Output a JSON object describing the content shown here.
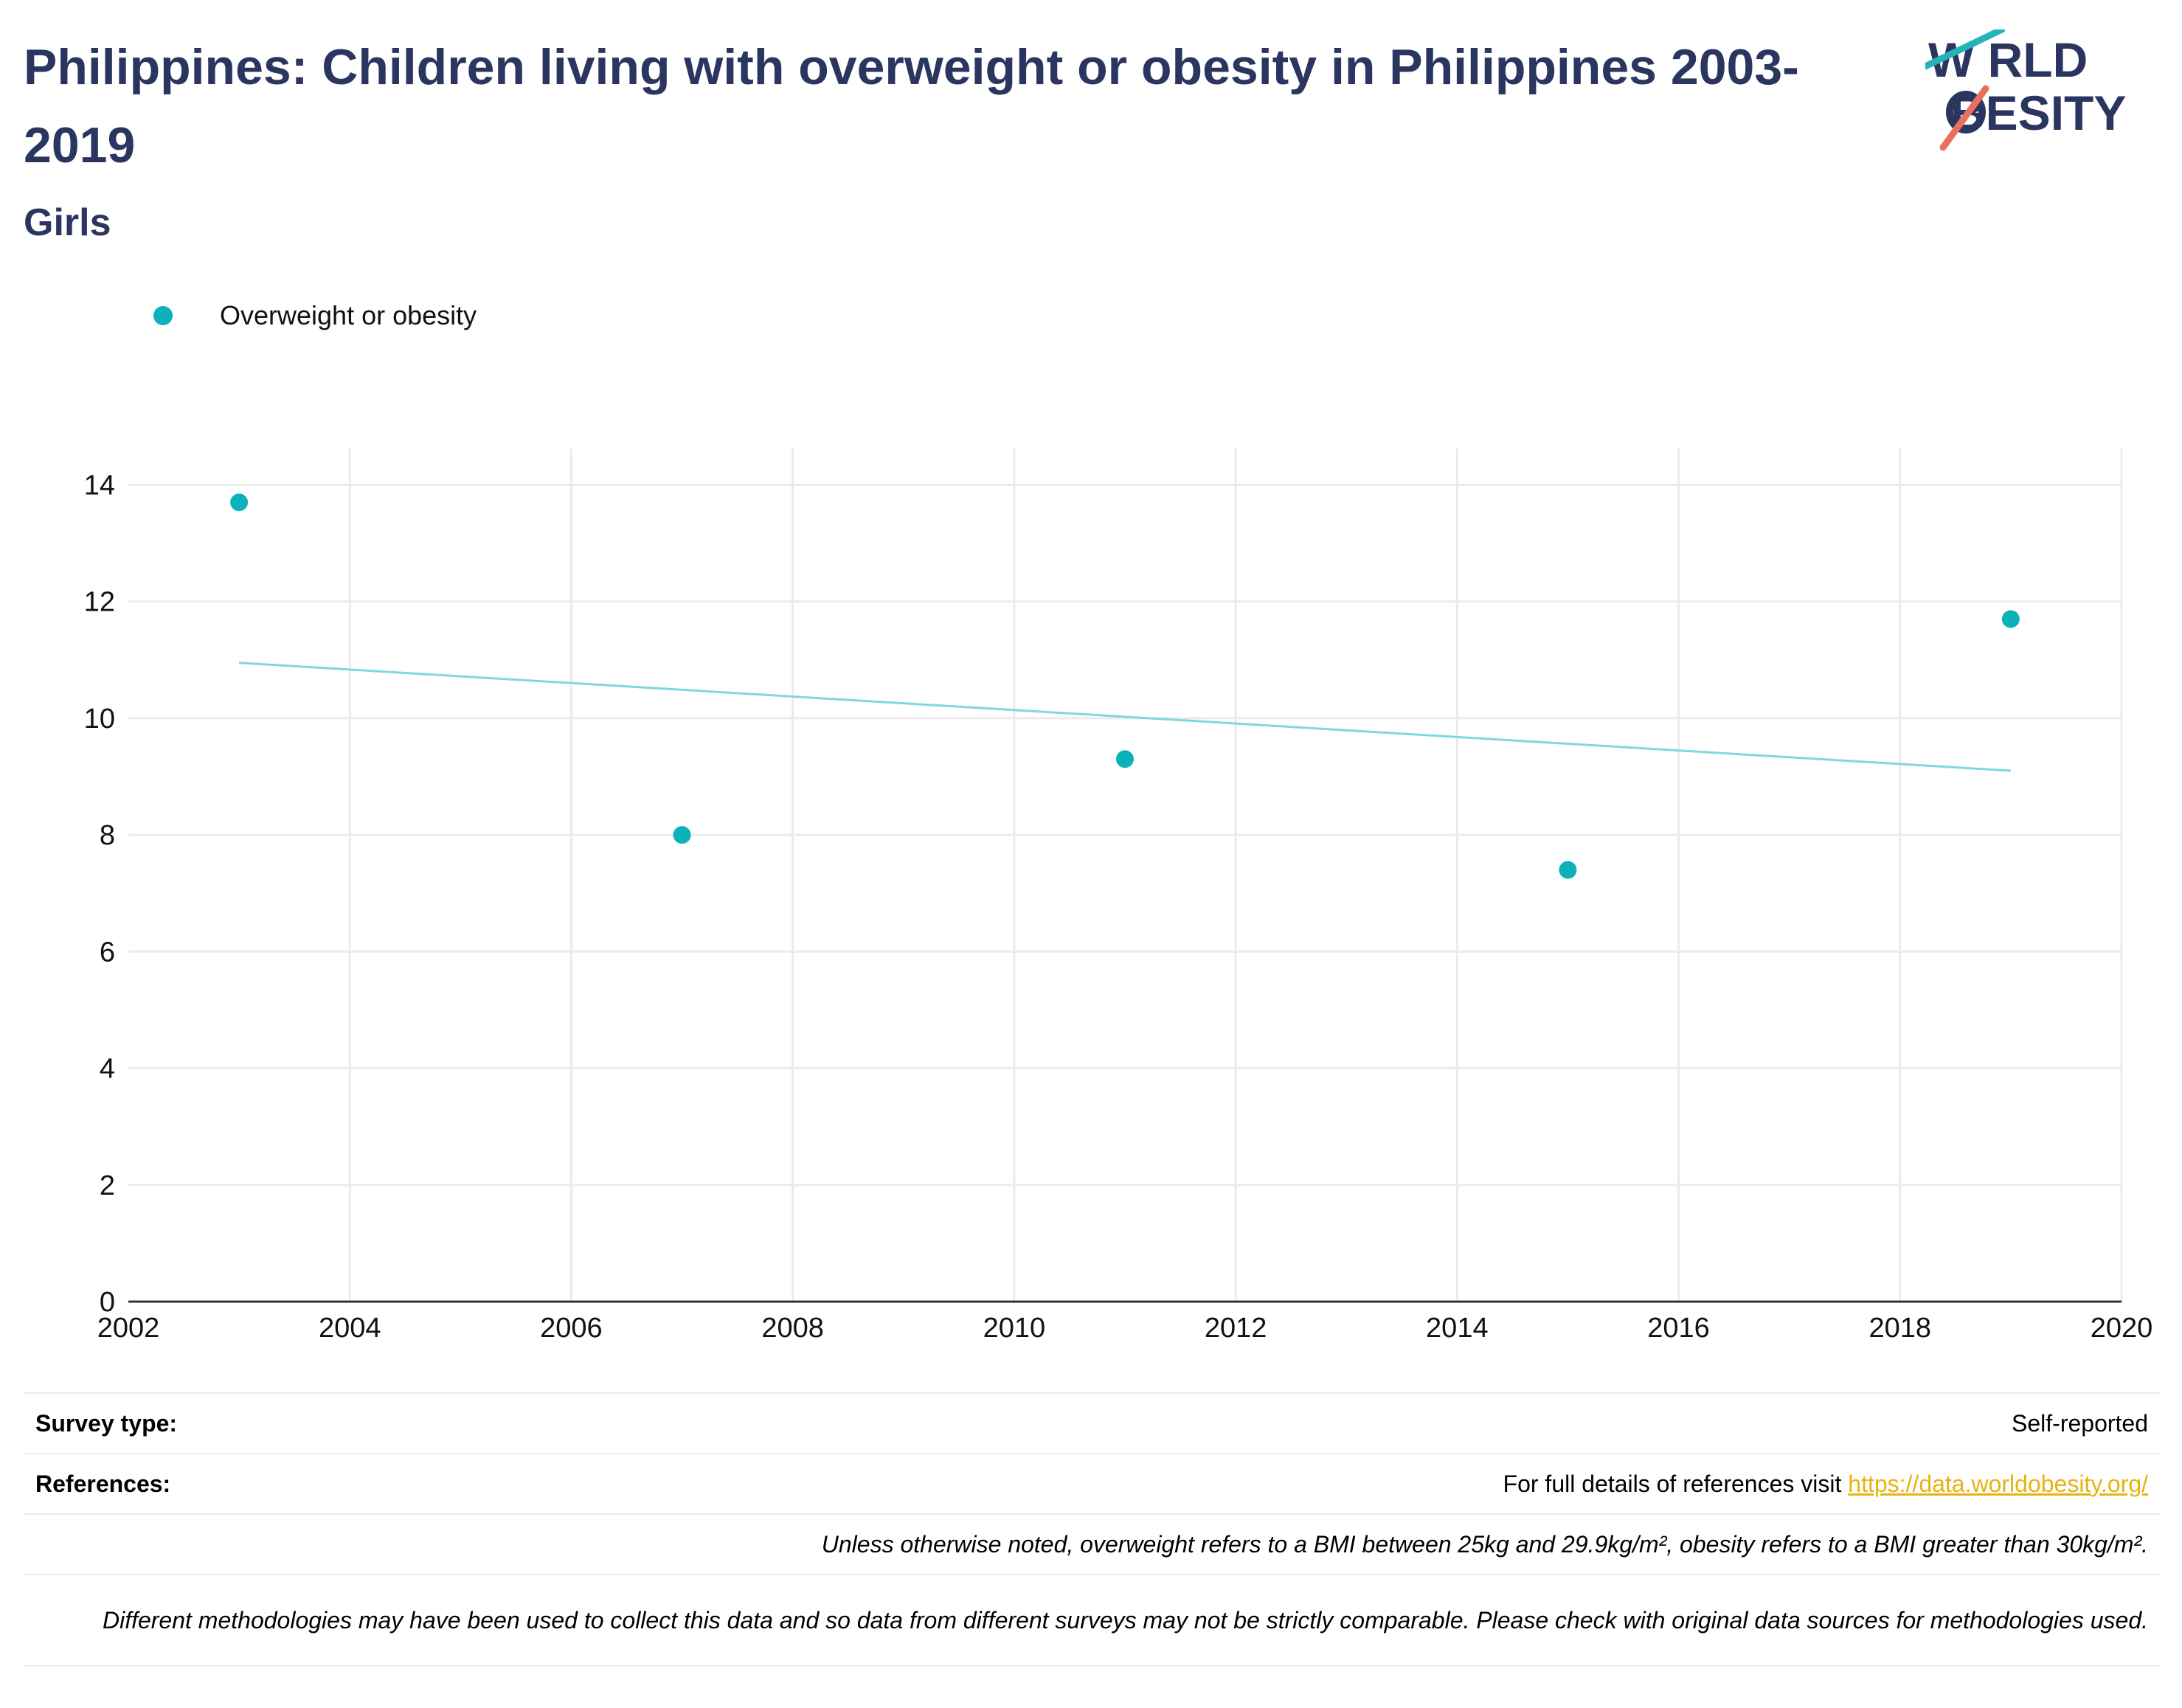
{
  "header": {
    "title": "Philippines: Children living with overweight or obesity in Philippines 2003-2019",
    "subtitle": "Girls",
    "logo_text_1": "W RLD",
    "logo_text_2": "BESITY",
    "logo_alt": "WORLD OBESITY"
  },
  "colors": {
    "title": "#2b3660",
    "series": "#0cb2bb",
    "trend": "#7fd8dc",
    "logo_teal": "#26b3b8",
    "logo_coral": "#e8705f",
    "link": "#e6b311"
  },
  "chart_data": {
    "type": "scatter",
    "title": "Philippines: Children living with overweight or obesity in Philippines 2003-2019",
    "subtitle": "Girls",
    "xlabel": "",
    "ylabel": "",
    "xlim": [
      2002,
      2020
    ],
    "ylim": [
      0,
      14.6
    ],
    "xticks": [
      2002,
      2004,
      2006,
      2008,
      2010,
      2012,
      2014,
      2016,
      2018,
      2020
    ],
    "yticks": [
      0,
      2,
      4,
      6,
      8,
      10,
      12,
      14
    ],
    "grid": true,
    "legend_position": "top-left",
    "series": [
      {
        "name": "Overweight or obesity",
        "x": [
          2003,
          2007,
          2011,
          2015,
          2019
        ],
        "y": [
          13.7,
          8.0,
          9.3,
          7.4,
          11.7
        ]
      }
    ],
    "trendline": {
      "x": [
        2003,
        2019
      ],
      "y": [
        10.95,
        9.1
      ]
    }
  },
  "info": {
    "survey_type_label": "Survey type:",
    "survey_type_value": "Self-reported",
    "references_label": "References:",
    "references_text": "For full details of references visit ",
    "references_link": "https://data.worldobesity.org/",
    "note_bmi": "Unless otherwise noted, overweight refers to a BMI between 25kg and 29.9kg/m², obesity refers to a BMI greater than 30kg/m².",
    "note_methods": "Different methodologies may have been used to collect this data and so data from different surveys may not be strictly comparable. Please check with original data sources for methodologies used."
  }
}
